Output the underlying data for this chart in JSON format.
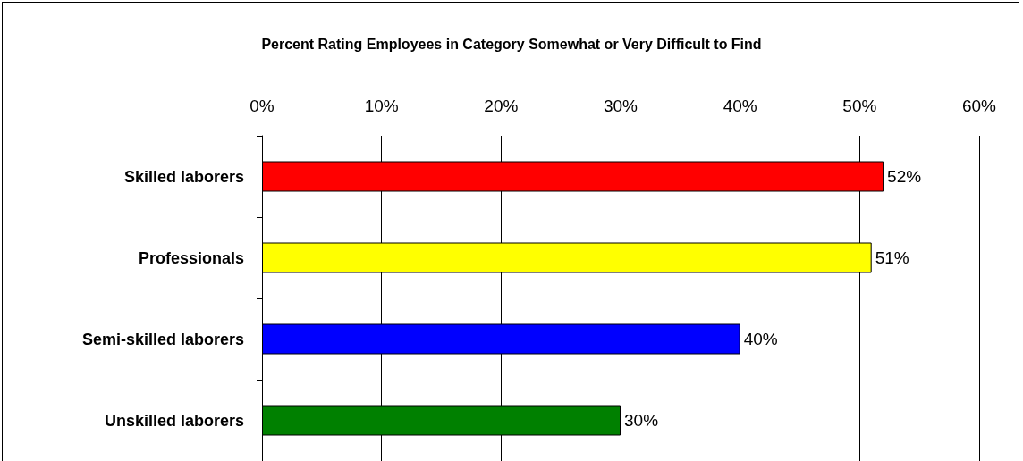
{
  "chart_data": {
    "type": "bar",
    "orientation": "horizontal",
    "title": "Percent Rating Employees in Category Somewhat or Very Difficult to Find",
    "categories": [
      "Skilled laborers",
      "Professionals",
      "Semi-skilled laborers",
      "Unskilled laborers"
    ],
    "values": [
      52,
      51,
      40,
      30
    ],
    "colors": [
      "#ff0000",
      "#ffff00",
      "#0000ff",
      "#008000"
    ],
    "value_labels": [
      "52%",
      "51%",
      "40%",
      "30%"
    ],
    "xlim": [
      0,
      60
    ],
    "xticks": [
      {
        "value": 0,
        "label": "0%"
      },
      {
        "value": 10,
        "label": "10%"
      },
      {
        "value": 20,
        "label": "20%"
      },
      {
        "value": 30,
        "label": "30%"
      },
      {
        "value": 40,
        "label": "40%"
      },
      {
        "value": 50,
        "label": "50%"
      },
      {
        "value": 60,
        "label": "60%"
      }
    ],
    "grid": "x"
  }
}
